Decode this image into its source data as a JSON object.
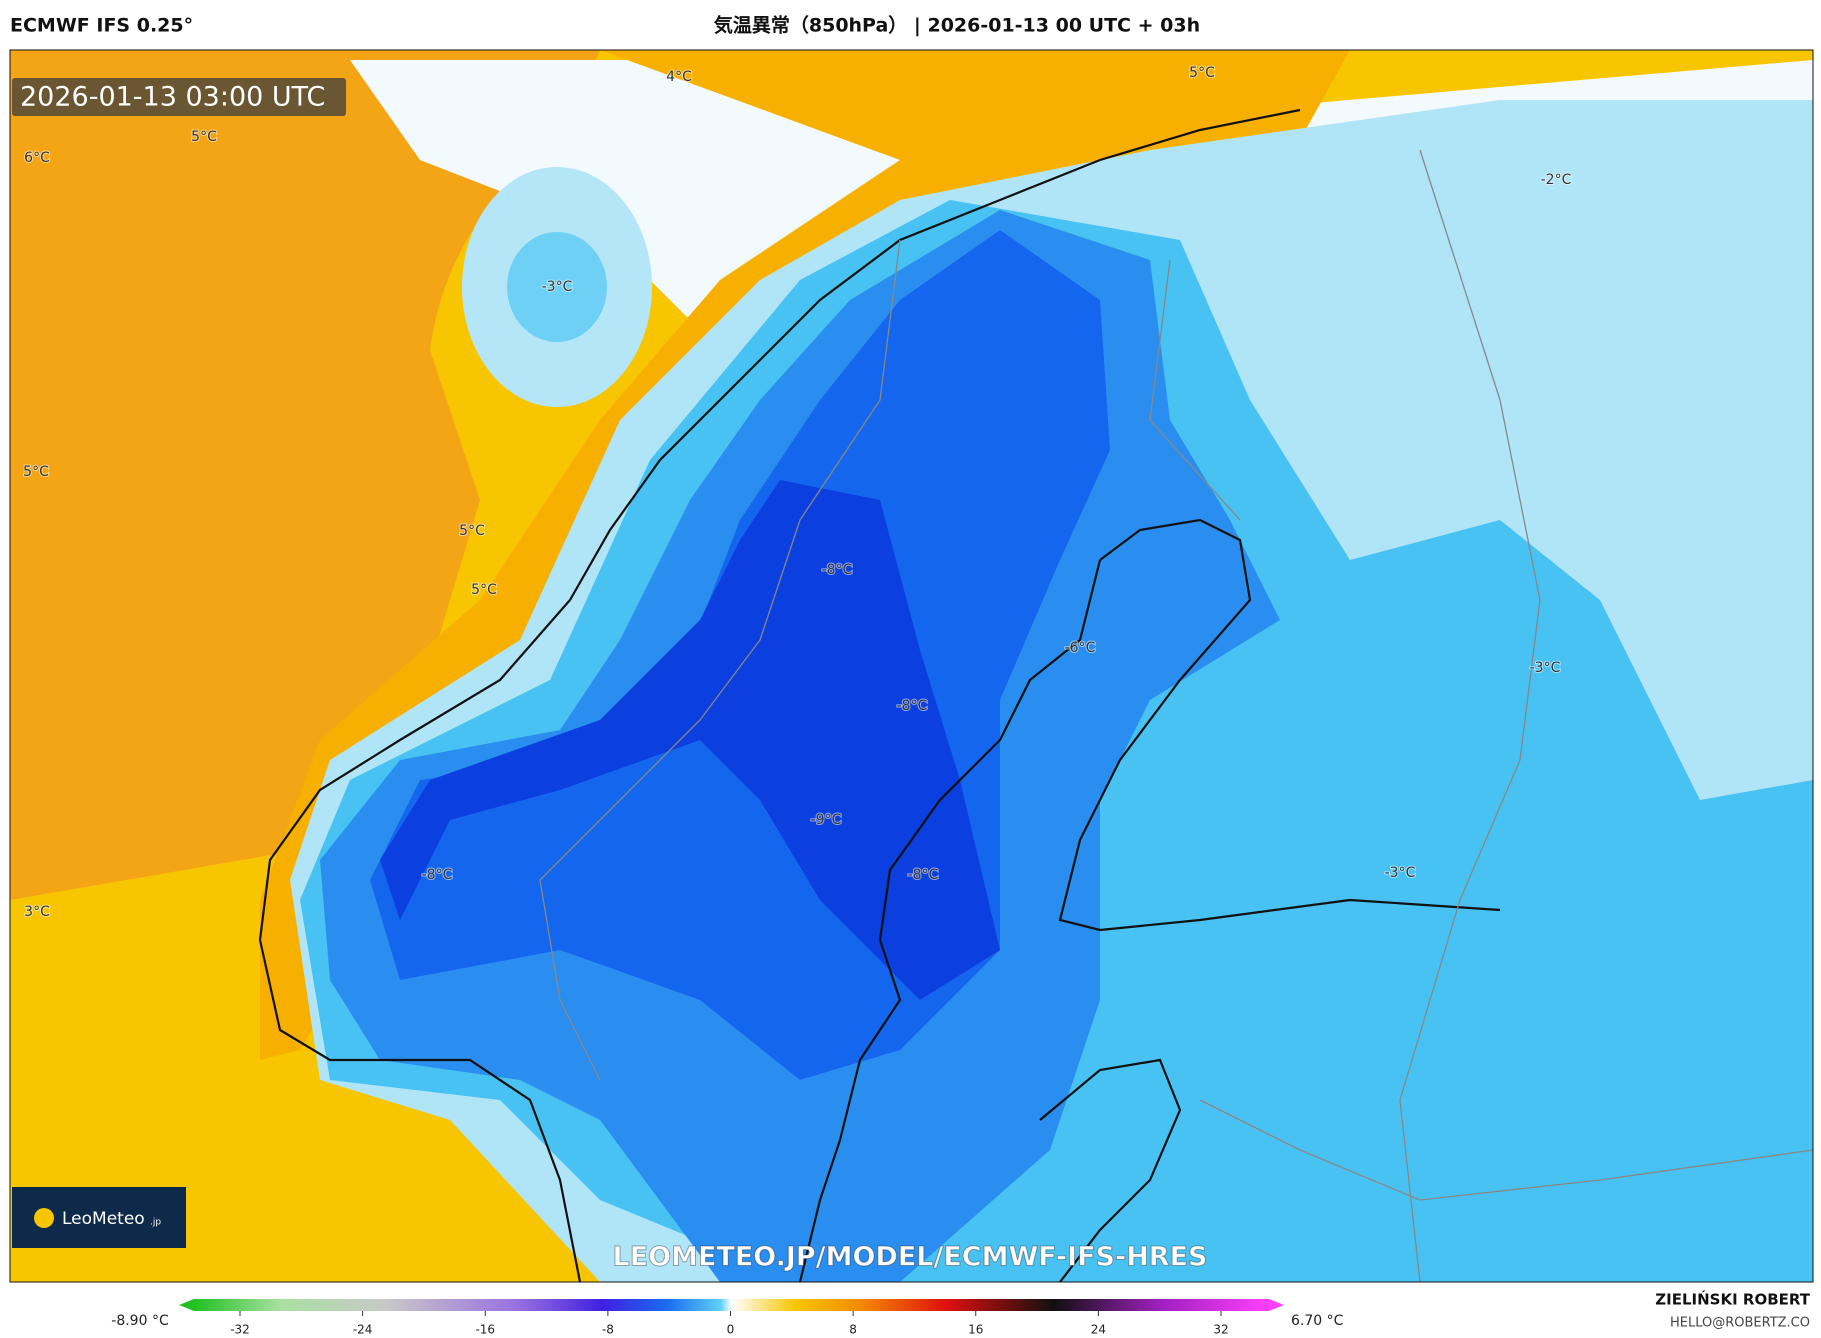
{
  "header": {
    "model": "ECMWF IFS 0.25°",
    "title": "気温異常（850hPa） | 2026-01-13 00 UTC + 03h"
  },
  "map": {
    "timestamp": "2026-01-13 03:00 UTC",
    "contour_labels": [
      "4°C",
      "5°C",
      "5°C",
      "6°C",
      "-3°C",
      "-2°C",
      "5°C",
      "5°C",
      "5°C",
      "-8°C",
      "-6°C",
      "-3°C",
      "-8°C",
      "-9°C",
      "-8°C",
      "-8°C",
      "3°C",
      "-3°C"
    ],
    "watermark": "LEOMETEO.JP/MODEL/ECMWF-IFS-HRES",
    "logo": "LeoMeteo",
    "logo_suffix": ".jp"
  },
  "colorbar": {
    "min_label": "-8.90 °C",
    "max_label": "6.70 °C",
    "ticks": [
      -32,
      -24,
      -16,
      -8,
      0,
      8,
      16,
      24,
      32
    ]
  },
  "credits": {
    "author": "ZIELIŃSKI ROBERT",
    "contact": "HELLO@ROBERTZ.CO"
  }
}
